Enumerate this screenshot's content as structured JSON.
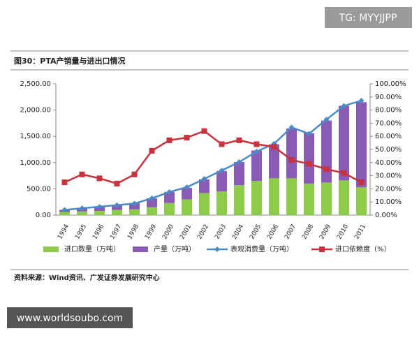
{
  "watermark_top": "TG: MYYJJPP",
  "watermark_bottom": "www.worldsoubo.com",
  "chart_data": {
    "type": "bar-line",
    "title": "图30：PTA产销量与进出口情况",
    "source": "资料来源：Wind资讯、广发证券发展研究中心",
    "categories": [
      "1994",
      "1995",
      "1996",
      "1997",
      "1998",
      "1999",
      "2000",
      "2001",
      "2002",
      "2003",
      "2004",
      "2005",
      "2006",
      "2007",
      "2008",
      "2009",
      "2010",
      "2011"
    ],
    "series": [
      {
        "name": "进口数量（万吨）",
        "color": "#8ccc4a",
        "kind": "bar",
        "axis": "y",
        "values": [
          60,
          70,
          80,
          100,
          110,
          150,
          230,
          300,
          420,
          450,
          570,
          650,
          700,
          700,
          600,
          620,
          660,
          530
        ]
      },
      {
        "name": "产量（万吨）",
        "color": "#8a5bb5",
        "kind": "bar",
        "axis": "y",
        "values": [
          40,
          60,
          80,
          90,
          120,
          170,
          210,
          220,
          260,
          390,
          440,
          580,
          650,
          950,
          960,
          1180,
          1420,
          1620
        ]
      },
      {
        "name": "表观消费量（万吨）",
        "color": "#4a8ac8",
        "kind": "line",
        "marker": "diamond",
        "axis": "y",
        "values": [
          100,
          130,
          160,
          190,
          220,
          320,
          440,
          530,
          690,
          850,
          1010,
          1210,
          1360,
          1670,
          1550,
          1820,
          2080,
          2180
        ]
      },
      {
        "name": "进口依赖度（%）",
        "color": "#c8323c",
        "kind": "line",
        "marker": "square",
        "axis": "y2",
        "values": [
          25,
          31,
          28,
          24,
          31,
          49,
          57,
          59,
          64,
          54,
          57,
          54,
          52,
          42,
          39,
          35,
          32,
          25
        ]
      }
    ],
    "ylim": [
      0,
      2500
    ],
    "yticks": [
      {
        "value": 0,
        "label": "0.00"
      },
      {
        "value": 500,
        "label": "500.00"
      },
      {
        "value": 1000,
        "label": "1,000.00"
      },
      {
        "value": 1500,
        "label": "1,500.00"
      },
      {
        "value": 2000,
        "label": "2,000.00"
      },
      {
        "value": 2500,
        "label": "2,500.00"
      }
    ],
    "y2lim": [
      0,
      100
    ],
    "y2ticks": [
      {
        "value": 0,
        "label": "0.00%"
      },
      {
        "value": 10,
        "label": "10.00%"
      },
      {
        "value": 20,
        "label": "20.00%"
      },
      {
        "value": 30,
        "label": "30.00%"
      },
      {
        "value": 40,
        "label": "40.00%"
      },
      {
        "value": 50,
        "label": "50.00%"
      },
      {
        "value": 60,
        "label": "60.00%"
      },
      {
        "value": 70,
        "label": "70.00%"
      },
      {
        "value": 80,
        "label": "80.00%"
      },
      {
        "value": 90,
        "label": "90.00%"
      },
      {
        "value": 100,
        "label": "100.00%"
      }
    ]
  }
}
